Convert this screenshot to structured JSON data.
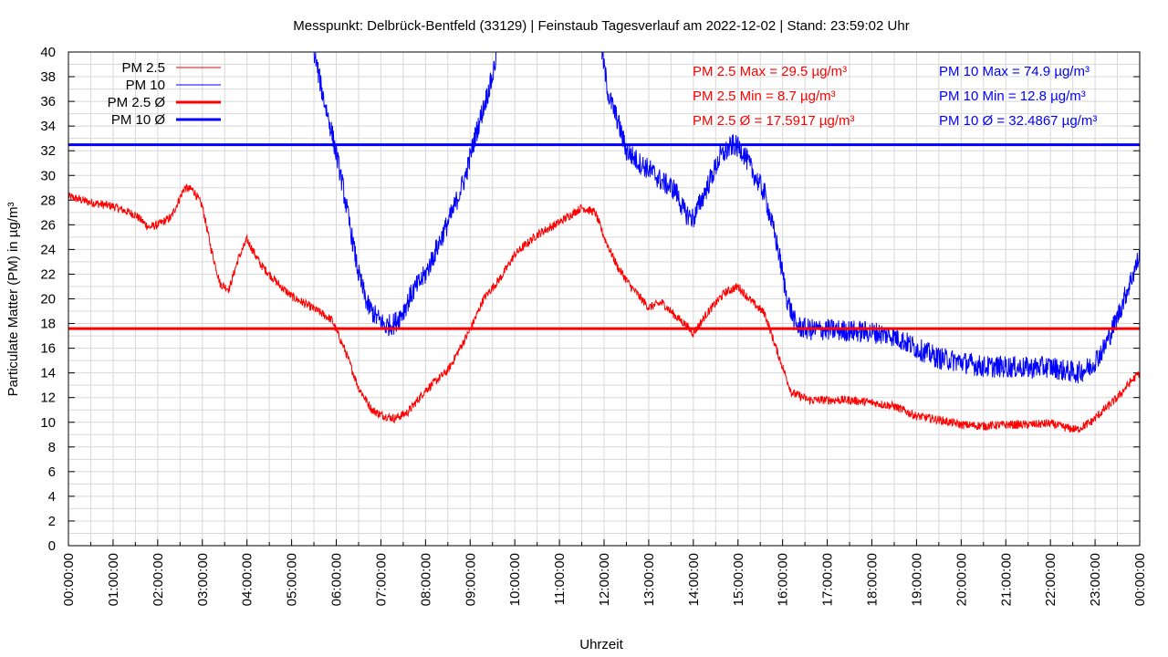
{
  "chart_data": {
    "type": "line",
    "title": "Messpunkt: Delbrück-Bentfeld (33129) | Feinstaub Tagesverlauf am 2022-12-02 | Stand: 23:59:02 Uhr",
    "xlabel": "Uhrzeit",
    "ylabel": "Particulate Matter (PM) in µg/m³",
    "ylim": [
      0,
      40
    ],
    "yticks": [
      0,
      2,
      4,
      6,
      8,
      10,
      12,
      14,
      16,
      18,
      20,
      22,
      24,
      26,
      28,
      30,
      32,
      34,
      36,
      38,
      40
    ],
    "xticks": [
      "00:00:00",
      "01:00:00",
      "02:00:00",
      "03:00:00",
      "04:00:00",
      "05:00:00",
      "06:00:00",
      "07:00:00",
      "08:00:00",
      "09:00:00",
      "10:00:00",
      "11:00:00",
      "12:00:00",
      "13:00:00",
      "14:00:00",
      "15:00:00",
      "16:00:00",
      "17:00:00",
      "18:00:00",
      "19:00:00",
      "20:00:00",
      "21:00:00",
      "22:00:00",
      "23:00:00",
      "00:00:00"
    ],
    "grid": true,
    "legend_position": "top-left",
    "series": [
      {
        "name": "PM 2.5",
        "color": "#ff0000",
        "x_hours": [
          0,
          0.5,
          1.0,
          1.5,
          1.8,
          2.0,
          2.3,
          2.6,
          2.8,
          3.0,
          3.2,
          3.4,
          3.6,
          3.8,
          4.0,
          4.3,
          4.7,
          5.0,
          5.5,
          5.9,
          6.2,
          6.5,
          6.8,
          7.0,
          7.3,
          7.6,
          8.0,
          8.5,
          9.0,
          9.3,
          9.7,
          10.0,
          10.5,
          11.0,
          11.5,
          11.8,
          12.0,
          12.3,
          12.6,
          13.0,
          13.3,
          13.6,
          13.8,
          14.0,
          14.3,
          14.7,
          15.0,
          15.3,
          15.6,
          15.9,
          16.2,
          16.6,
          17.0,
          17.5,
          18.0,
          18.5,
          19.0,
          19.5,
          20.0,
          20.5,
          21.0,
          21.5,
          22.0,
          22.3,
          22.6,
          22.9,
          23.2,
          23.5,
          23.8,
          24.0
        ],
        "values": [
          28.3,
          27.8,
          27.5,
          26.8,
          25.8,
          26.0,
          26.6,
          29.0,
          28.8,
          27.5,
          24.0,
          21.2,
          20.8,
          23.2,
          24.8,
          22.8,
          21.2,
          20.2,
          19.2,
          18.3,
          15.8,
          12.8,
          11.0,
          10.6,
          10.3,
          10.8,
          12.6,
          14.2,
          17.5,
          20.0,
          21.8,
          23.6,
          25.2,
          26.2,
          27.4,
          27.0,
          25.0,
          22.6,
          21.0,
          19.3,
          19.7,
          18.6,
          18.0,
          17.2,
          18.8,
          20.5,
          21.0,
          19.8,
          18.8,
          15.5,
          12.4,
          11.8,
          11.8,
          11.8,
          11.6,
          11.3,
          10.5,
          10.2,
          9.8,
          9.7,
          9.8,
          9.8,
          9.9,
          9.6,
          9.4,
          10.0,
          11.0,
          12.0,
          13.3,
          14.0
        ]
      },
      {
        "name": "PM 10",
        "color": "#0000ff",
        "x_hours": [
          5.5,
          5.7,
          5.9,
          6.1,
          6.3,
          6.5,
          6.7,
          6.9,
          7.1,
          7.3,
          7.5,
          7.7,
          8.0,
          8.3,
          8.6,
          8.9,
          9.1,
          9.3,
          9.5,
          9.6,
          11.95,
          12.1,
          12.3,
          12.5,
          12.8,
          13.0,
          13.3,
          13.6,
          13.8,
          14.0,
          14.3,
          14.6,
          14.9,
          15.1,
          15.3,
          15.6,
          15.9,
          16.1,
          16.3,
          16.6,
          17.0,
          17.5,
          18.0,
          18.5,
          19.0,
          19.5,
          20.0,
          20.5,
          21.0,
          21.5,
          22.0,
          22.3,
          22.6,
          22.9,
          23.2,
          23.5,
          23.8,
          24.0
        ],
        "values": [
          40,
          36.5,
          33.5,
          30.0,
          26.0,
          22.0,
          19.5,
          18.5,
          17.8,
          18.0,
          19.0,
          20.5,
          22.0,
          24.5,
          27.0,
          30.0,
          33.0,
          35.5,
          38.0,
          40,
          40,
          36.5,
          34.5,
          32.0,
          31.0,
          30.5,
          29.5,
          28.8,
          27.0,
          26.5,
          29.0,
          31.5,
          32.5,
          32.0,
          30.5,
          28.5,
          24.0,
          20.0,
          17.8,
          17.5,
          17.5,
          17.4,
          17.3,
          17.0,
          16.0,
          15.2,
          14.9,
          14.5,
          14.5,
          14.4,
          14.5,
          14.2,
          14.0,
          14.5,
          16.0,
          18.5,
          21.5,
          23.5
        ]
      },
      {
        "name": "PM 2.5 Ø",
        "color": "#ff0000",
        "constant": 17.5917
      },
      {
        "name": "PM 10 Ø",
        "color": "#0000ff",
        "constant": 32.4867
      }
    ]
  },
  "stats": {
    "pm25_max": "PM 2.5 Max = 29.5 µg/m³",
    "pm25_min": "PM 2.5 Min = 8.7 µg/m³",
    "pm25_avg": "PM 2.5 Ø = 17.5917 µg/m³",
    "pm10_max": "PM 10 Max = 74.9 µg/m³",
    "pm10_min": "PM 10 Min = 12.8 µg/m³",
    "pm10_avg": "PM 10 Ø = 32.4867 µg/m³"
  },
  "colors": {
    "pm25": "#ff0000",
    "pm10": "#0000ff",
    "grid": "#d8d8d8"
  }
}
